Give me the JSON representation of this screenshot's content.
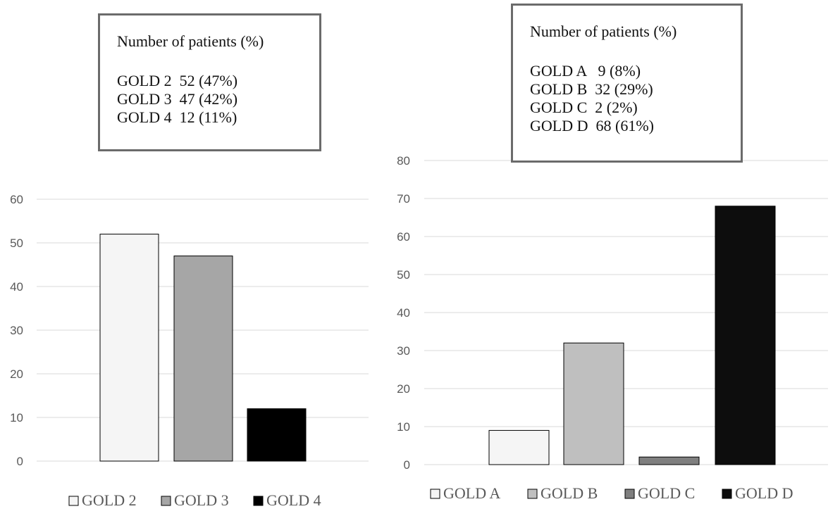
{
  "panels": [
    {
      "summary_box": {
        "title": "Number of patients (%)",
        "lines": [
          "GOLD 2  52 (47%)",
          "GOLD 3  47 (42%)",
          "GOLD 4  12 (11%)"
        ]
      }
    },
    {
      "summary_box": {
        "title": "Number of patients (%)",
        "lines": [
          "GOLD A   9 (8%)",
          "GOLD B  32 (29%)",
          "GOLD C  2 (2%)",
          "GOLD D  68 (61%)"
        ]
      }
    }
  ],
  "chart_data": [
    {
      "type": "bar",
      "categories": [
        "GOLD 2",
        "GOLD 3",
        "GOLD 4"
      ],
      "values": [
        52,
        47,
        12
      ],
      "colors": [
        "#f5f5f5",
        "#a6a6a6",
        "#000000"
      ],
      "ylim": [
        0,
        60
      ],
      "yticks": [
        0,
        10,
        20,
        30,
        40,
        50,
        60
      ],
      "grid": true,
      "legend": "bottom",
      "xlabel": "",
      "ylabel": ""
    },
    {
      "type": "bar",
      "categories": [
        "GOLD A",
        "GOLD B",
        "GOLD C",
        "GOLD D"
      ],
      "values": [
        9,
        32,
        2,
        68
      ],
      "colors": [
        "#f5f5f5",
        "#bfbfbf",
        "#7f7f7f",
        "#0d0d0d"
      ],
      "ylim": [
        0,
        80
      ],
      "yticks": [
        0,
        10,
        20,
        30,
        40,
        50,
        60,
        70,
        80
      ],
      "grid": true,
      "legend": "bottom",
      "xlabel": "",
      "ylabel": ""
    }
  ]
}
